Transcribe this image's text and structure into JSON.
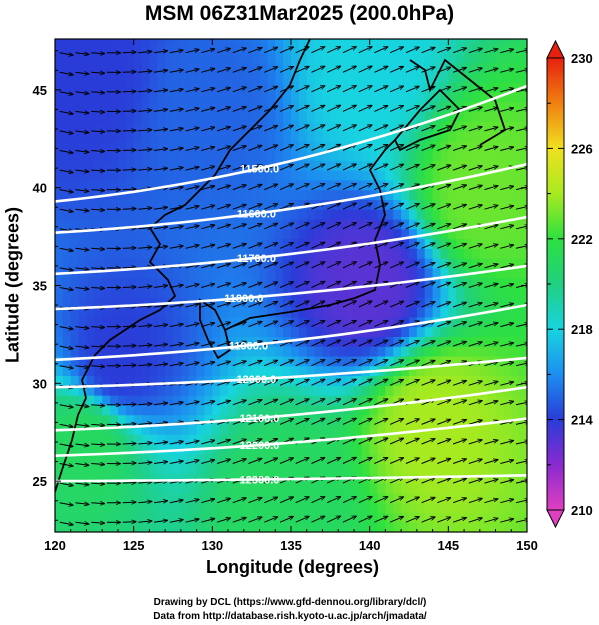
{
  "title": "MSM 06Z31Mar2025 (200.0hPa)",
  "xlabel": "Longitude (degrees)",
  "ylabel": "Latitude  (degrees)",
  "credits": [
    "Drawing by DCL (https://www.gfd-dennou.org/library/dcl/)",
    "Data from http://database.rish.kyoto-u.ac.jp/arch/jmadata/"
  ],
  "chart_data": {
    "type": "heatmap",
    "xlim": [
      120,
      150
    ],
    "ylim": [
      22.4,
      47.6
    ],
    "x_ticks": [
      120,
      125,
      130,
      135,
      140,
      145,
      150
    ],
    "y_ticks": [
      25,
      30,
      35,
      40,
      45
    ],
    "x_tick_labels": [
      "120",
      "125",
      "130",
      "135",
      "140",
      "145",
      "150"
    ],
    "y_tick_labels": [
      "25",
      "30",
      "35",
      "40",
      "45"
    ],
    "colorbar": {
      "min": 210,
      "max": 230,
      "labels": [
        "230",
        "226",
        "222",
        "218",
        "214",
        "210"
      ],
      "label_values": [
        230,
        226,
        222,
        218,
        214,
        210
      ],
      "stops": [
        {
          "v": 210,
          "c": "#e040c0"
        },
        {
          "v": 212,
          "c": "#8a2ad0"
        },
        {
          "v": 214,
          "c": "#2a3cd8"
        },
        {
          "v": 216,
          "c": "#1c8ef0"
        },
        {
          "v": 218,
          "c": "#18d4e0"
        },
        {
          "v": 220,
          "c": "#20d080"
        },
        {
          "v": 222,
          "c": "#2ee040"
        },
        {
          "v": 224,
          "c": "#a8ea20"
        },
        {
          "v": 226,
          "c": "#f0e020"
        },
        {
          "v": 228,
          "c": "#f08010"
        },
        {
          "v": 230,
          "c": "#e82010"
        }
      ]
    },
    "contours": [
      {
        "label": "11500.0",
        "value": 11500,
        "lat_at_120": 39.3,
        "lat_at_150": 45.2,
        "label_lon": 133.0
      },
      {
        "label": "11600.0",
        "value": 11600,
        "lat_at_120": 37.7,
        "lat_at_150": 41.2,
        "label_lon": 132.8
      },
      {
        "label": "11700.0",
        "value": 11700,
        "lat_at_120": 35.6,
        "lat_at_150": 38.5,
        "label_lon": 132.8
      },
      {
        "label": "11800.0",
        "value": 11800,
        "lat_at_120": 33.8,
        "lat_at_150": 36.0,
        "label_lon": 132.0
      },
      {
        "label": "11900.0",
        "value": 11900,
        "lat_at_120": 31.2,
        "lat_at_150": 34.0,
        "label_lon": 132.3
      },
      {
        "label": "12000.0",
        "value": 12000,
        "lat_at_120": 29.8,
        "lat_at_150": 31.3,
        "label_lon": 132.8
      },
      {
        "label": "12100.0",
        "value": 12100,
        "lat_at_120": 27.6,
        "lat_at_150": 29.8,
        "label_lon": 133.0
      },
      {
        "label": "12200.0",
        "value": 12200,
        "lat_at_120": 26.3,
        "lat_at_150": 28.2,
        "label_lon": 133.0
      },
      {
        "label": "12300.0",
        "value": 12300,
        "lat_at_120": 25.0,
        "lat_at_150": 25.3,
        "label_lon": 133.0
      }
    ],
    "temperature_field_samples": [
      {
        "lon": 122,
        "lat": 46,
        "temp": 214
      },
      {
        "lon": 130,
        "lat": 44,
        "temp": 215
      },
      {
        "lon": 140,
        "lat": 46,
        "temp": 218
      },
      {
        "lon": 147,
        "lat": 40,
        "temp": 223
      },
      {
        "lon": 140,
        "lat": 35,
        "temp": 213
      },
      {
        "lon": 124,
        "lat": 31,
        "temp": 214
      },
      {
        "lon": 122,
        "lat": 27,
        "temp": 221
      },
      {
        "lon": 144,
        "lat": 28,
        "temp": 224
      },
      {
        "lon": 135,
        "lat": 24,
        "temp": 221
      }
    ],
    "wind": {
      "direction": "westerly",
      "vector_spacing_deg": 1.0
    }
  }
}
